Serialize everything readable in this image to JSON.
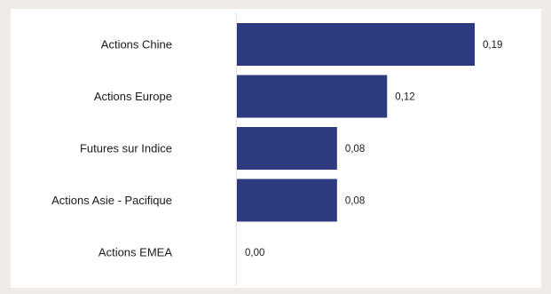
{
  "chart_data": {
    "type": "bar",
    "orientation": "horizontal",
    "categories": [
      "Actions Chine",
      "Actions Europe",
      "Futures sur Indice",
      "Actions Asie - Pacifique",
      "Actions EMEA"
    ],
    "values": [
      0.19,
      0.12,
      0.08,
      0.08,
      0.0
    ],
    "value_labels": [
      "0,19",
      "0,12",
      "0,08",
      "0,08",
      "0,00"
    ],
    "xlim": [
      0,
      0.19
    ],
    "bar_color": "#2e3a7f",
    "grid": false,
    "legend": "none"
  }
}
